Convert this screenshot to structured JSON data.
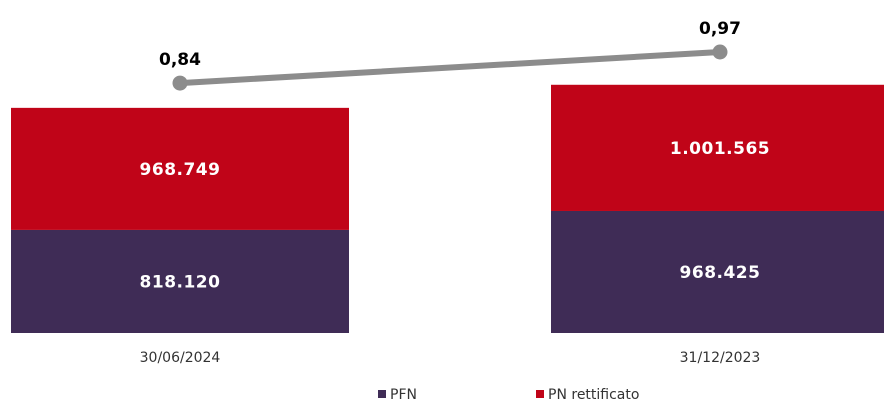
{
  "chart_data": {
    "type": "bar",
    "stacked": true,
    "categories": [
      "30/06/2024",
      "31/12/2023"
    ],
    "series": [
      {
        "name": "PFN",
        "values": [
          818120,
          968425
        ],
        "labels": [
          "818.120",
          "968.425"
        ],
        "color": "#3f2c56"
      },
      {
        "name": "PN rettificato",
        "values": [
          968749,
          1001565
        ],
        "labels": [
          "968.749",
          "1.001.565"
        ],
        "color": "#c00418"
      }
    ],
    "line_series": {
      "values": [
        0.84,
        0.97
      ],
      "labels": [
        "0,84",
        "0,97"
      ],
      "color": "#8c8c8c"
    },
    "legend": {
      "position": "bottom",
      "items": [
        "PFN",
        "PN rettificato"
      ]
    },
    "grid": false
  }
}
